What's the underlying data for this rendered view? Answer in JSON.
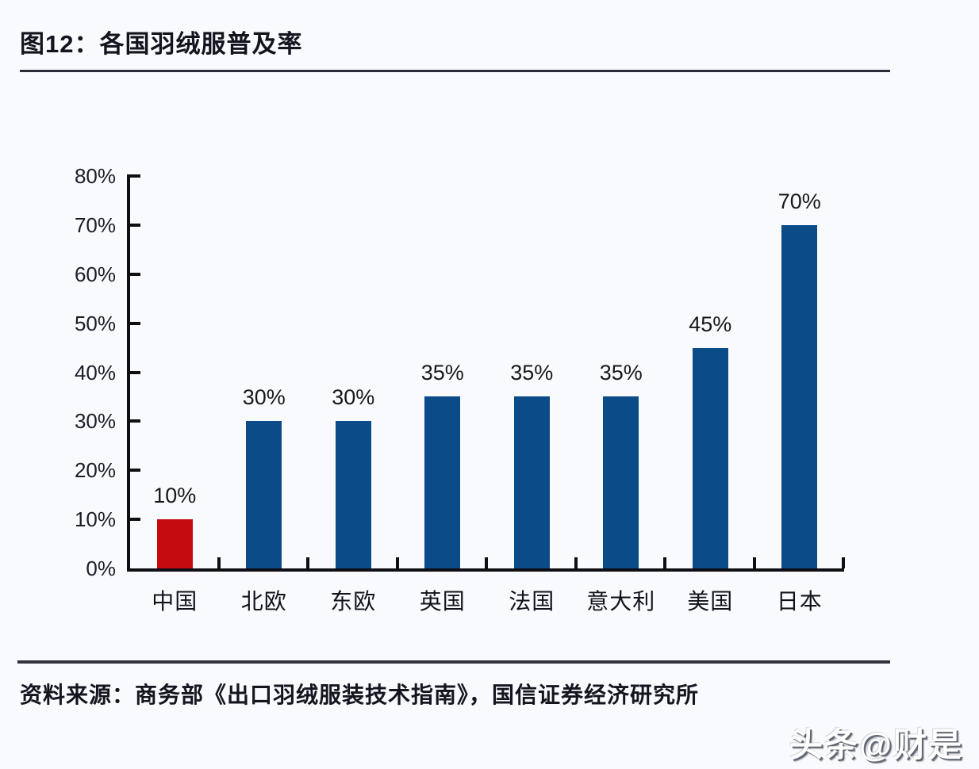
{
  "header": {
    "title": "图12：各国羽绒服普及率"
  },
  "footer": {
    "source": "资料来源：商务部《出口羽绒服装技术指南》，国信证券经济研究所"
  },
  "watermark": {
    "text": "头条@财是"
  },
  "chart_data": {
    "type": "bar",
    "title": "图12：各国羽绒服普及率",
    "categories": [
      "中国",
      "北欧",
      "东欧",
      "英国",
      "法国",
      "意大利",
      "美国",
      "日本"
    ],
    "values": [
      10,
      30,
      30,
      35,
      35,
      35,
      45,
      70
    ],
    "value_labels": [
      "10%",
      "30%",
      "30%",
      "35%",
      "35%",
      "35%",
      "45%",
      "70%"
    ],
    "bar_colors": [
      "#c50b10",
      "#0b4b87",
      "#0b4b87",
      "#0b4b87",
      "#0b4b87",
      "#0b4b87",
      "#0b4b87",
      "#0b4b87"
    ],
    "xlabel": "",
    "ylabel": "",
    "ylim": [
      0,
      80
    ],
    "yticks": [
      0,
      10,
      20,
      30,
      40,
      50,
      60,
      70,
      80
    ],
    "ytick_labels": [
      "0%",
      "10%",
      "20%",
      "30%",
      "40%",
      "50%",
      "60%",
      "70%",
      "80%"
    ],
    "grid": false,
    "legend": null,
    "accent_red": "#c50b10",
    "accent_blue": "#0b4b87",
    "axis_color": "#0e0e14"
  }
}
